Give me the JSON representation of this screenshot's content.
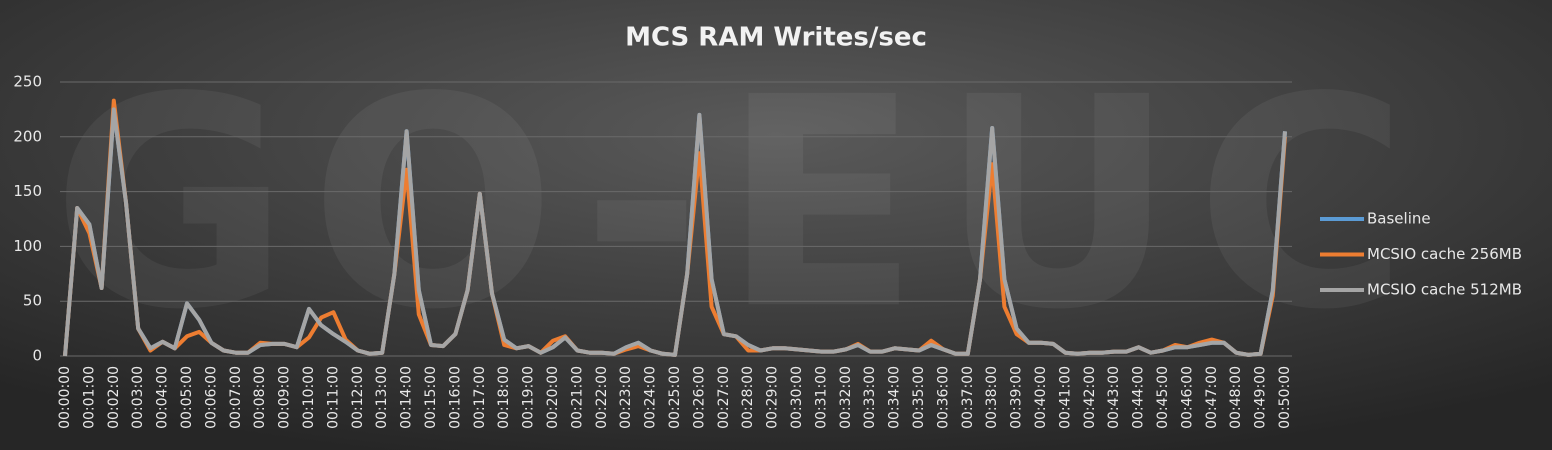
{
  "chart_data": {
    "type": "line",
    "title": "MCS RAM Writes/sec",
    "watermark": "GO-EUC",
    "categories": [
      "00:00:00",
      null,
      "00:01:00",
      null,
      "00:02:00",
      null,
      "00:03:00",
      null,
      "00:04:00",
      null,
      "00:05:00",
      null,
      "00:06:00",
      null,
      "00:07:00",
      null,
      "00:08:00",
      null,
      "00:09:00",
      null,
      "00:10:00",
      null,
      "00:11:00",
      null,
      "00:12:00",
      null,
      "00:13:00",
      null,
      "00:14:00",
      null,
      "00:15:00",
      null,
      "00:16:00",
      null,
      "00:17:00",
      null,
      "00:18:00",
      null,
      "00:19:00",
      null,
      "00:20:00",
      null,
      "00:21:00",
      null,
      "00:22:00",
      null,
      "00:23:00",
      null,
      "00:24:00",
      null,
      "00:25:00",
      null,
      "00:26:00",
      null,
      "00:27:00",
      null,
      "00:28:00",
      null,
      "00:29:00",
      null,
      "00:30:00",
      null,
      "00:31:00",
      null,
      "00:32:00",
      null,
      "00:33:00",
      null,
      "00:34:00",
      null,
      "00:35:00",
      null,
      "00:36:00",
      null,
      "00:37:00",
      null,
      "00:38:00",
      null,
      "00:39:00",
      null,
      "00:40:00",
      null,
      "00:41:00",
      null,
      "00:42:00",
      null,
      "00:43:00",
      null,
      "00:44:00",
      null,
      "00:45:00",
      null,
      "00:46:00",
      null,
      "00:47:00",
      null,
      "00:48:00",
      null,
      "00:49:00",
      null,
      "00:50:00"
    ],
    "series": [
      {
        "name": "Baseline",
        "color": "#5b9bd5",
        "values": [
          0,
          135,
          120,
          62,
          225,
          140,
          25,
          7,
          13,
          7,
          48,
          33,
          12,
          5,
          3,
          3,
          10,
          11,
          11,
          8,
          43,
          28,
          20,
          13,
          5,
          2,
          3,
          75,
          205,
          60,
          10,
          9,
          20,
          60,
          148,
          57,
          15,
          7,
          9,
          3,
          8,
          17,
          5,
          3,
          3,
          2,
          8,
          12,
          5,
          2,
          1,
          75,
          220,
          70,
          20,
          18,
          10,
          5,
          7,
          7,
          6,
          5,
          4,
          4,
          6,
          10,
          4,
          4,
          7,
          6,
          5,
          10,
          6,
          2,
          2,
          70,
          208,
          70,
          25,
          12,
          12,
          11,
          3,
          2,
          3,
          3,
          4,
          4,
          8,
          3,
          5,
          8,
          8,
          10,
          12,
          12,
          3,
          1,
          2,
          60,
          205
        ]
      },
      {
        "name": "MCSIO cache 256MB",
        "color": "#ed7d31",
        "values": [
          0,
          135,
          112,
          62,
          233,
          140,
          25,
          5,
          13,
          7,
          18,
          22,
          12,
          5,
          3,
          3,
          12,
          11,
          11,
          8,
          17,
          35,
          40,
          15,
          5,
          2,
          3,
          75,
          170,
          38,
          10,
          9,
          20,
          60,
          148,
          57,
          10,
          7,
          9,
          3,
          14,
          18,
          5,
          3,
          3,
          2,
          6,
          9,
          5,
          2,
          1,
          75,
          185,
          45,
          20,
          18,
          5,
          5,
          7,
          7,
          6,
          5,
          4,
          4,
          6,
          11,
          4,
          4,
          7,
          6,
          5,
          14,
          6,
          2,
          2,
          70,
          175,
          45,
          20,
          12,
          12,
          11,
          3,
          2,
          3,
          3,
          4,
          4,
          8,
          3,
          5,
          10,
          8,
          12,
          15,
          12,
          3,
          1,
          2,
          55,
          200
        ]
      },
      {
        "name": "MCSIO cache 512MB",
        "color": "#a5a5a5",
        "values": [
          0,
          135,
          120,
          62,
          225,
          140,
          25,
          7,
          13,
          7,
          48,
          33,
          12,
          5,
          3,
          3,
          10,
          11,
          11,
          8,
          43,
          28,
          20,
          13,
          5,
          2,
          3,
          75,
          205,
          60,
          10,
          9,
          20,
          60,
          148,
          57,
          15,
          7,
          9,
          3,
          8,
          17,
          5,
          3,
          3,
          2,
          8,
          12,
          5,
          2,
          1,
          75,
          220,
          70,
          20,
          18,
          10,
          5,
          7,
          7,
          6,
          5,
          4,
          4,
          6,
          10,
          4,
          4,
          7,
          6,
          5,
          10,
          6,
          2,
          2,
          70,
          208,
          70,
          25,
          12,
          12,
          11,
          3,
          2,
          3,
          3,
          4,
          4,
          8,
          3,
          5,
          8,
          8,
          10,
          12,
          12,
          3,
          1,
          2,
          60,
          205
        ]
      }
    ],
    "ylim": [
      0,
      250
    ],
    "yticks": [
      0,
      50,
      100,
      150,
      200,
      250
    ],
    "grid": true,
    "legend": "right"
  }
}
